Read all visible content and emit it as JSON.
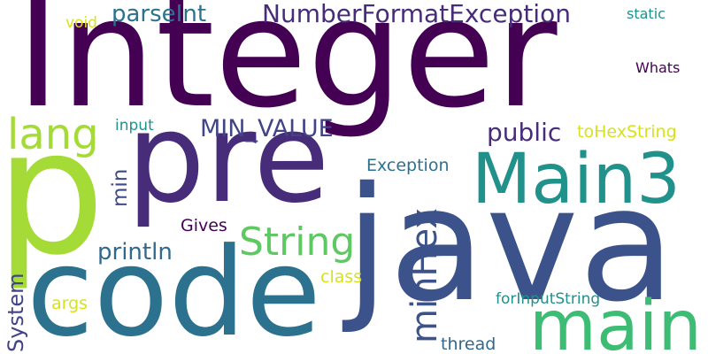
{
  "words": [
    {
      "text": "Integer",
      "color": "#440154"
    },
    {
      "text": "pre",
      "color": "#472c7a"
    },
    {
      "text": "java",
      "color": "#3b528b"
    },
    {
      "text": "code",
      "color": "#2c728e"
    },
    {
      "text": "p",
      "color": "#a5db36"
    },
    {
      "text": "Main3",
      "color": "#21918c"
    },
    {
      "text": "main",
      "color": "#3dbc74"
    },
    {
      "text": "String",
      "color": "#5ec962"
    },
    {
      "text": "minHex",
      "color": "#3b528b"
    },
    {
      "text": "lang",
      "color": "#a5db36"
    },
    {
      "text": "NumberFormatException",
      "color": "#472c7a"
    },
    {
      "text": "parseInt",
      "color": "#2c728e"
    },
    {
      "text": "MIN_VALUE",
      "color": "#414487"
    },
    {
      "text": "public",
      "color": "#472c7a"
    },
    {
      "text": "toHexString",
      "color": "#d8e219"
    },
    {
      "text": "Exception",
      "color": "#2c728e"
    },
    {
      "text": "println",
      "color": "#31688e"
    },
    {
      "text": "Gives",
      "color": "#440154"
    },
    {
      "text": "System",
      "color": "#414487"
    },
    {
      "text": "min",
      "color": "#3e4a89"
    },
    {
      "text": "args",
      "color": "#d8e219"
    },
    {
      "text": "class",
      "color": "#d8e219"
    },
    {
      "text": "forInputString",
      "color": "#21918c"
    },
    {
      "text": "thread",
      "color": "#31688e"
    },
    {
      "text": "input",
      "color": "#21918c"
    },
    {
      "text": "static",
      "color": "#21918c"
    },
    {
      "text": "void",
      "color": "#d8e219"
    },
    {
      "text": "Whats",
      "color": "#440154"
    }
  ]
}
